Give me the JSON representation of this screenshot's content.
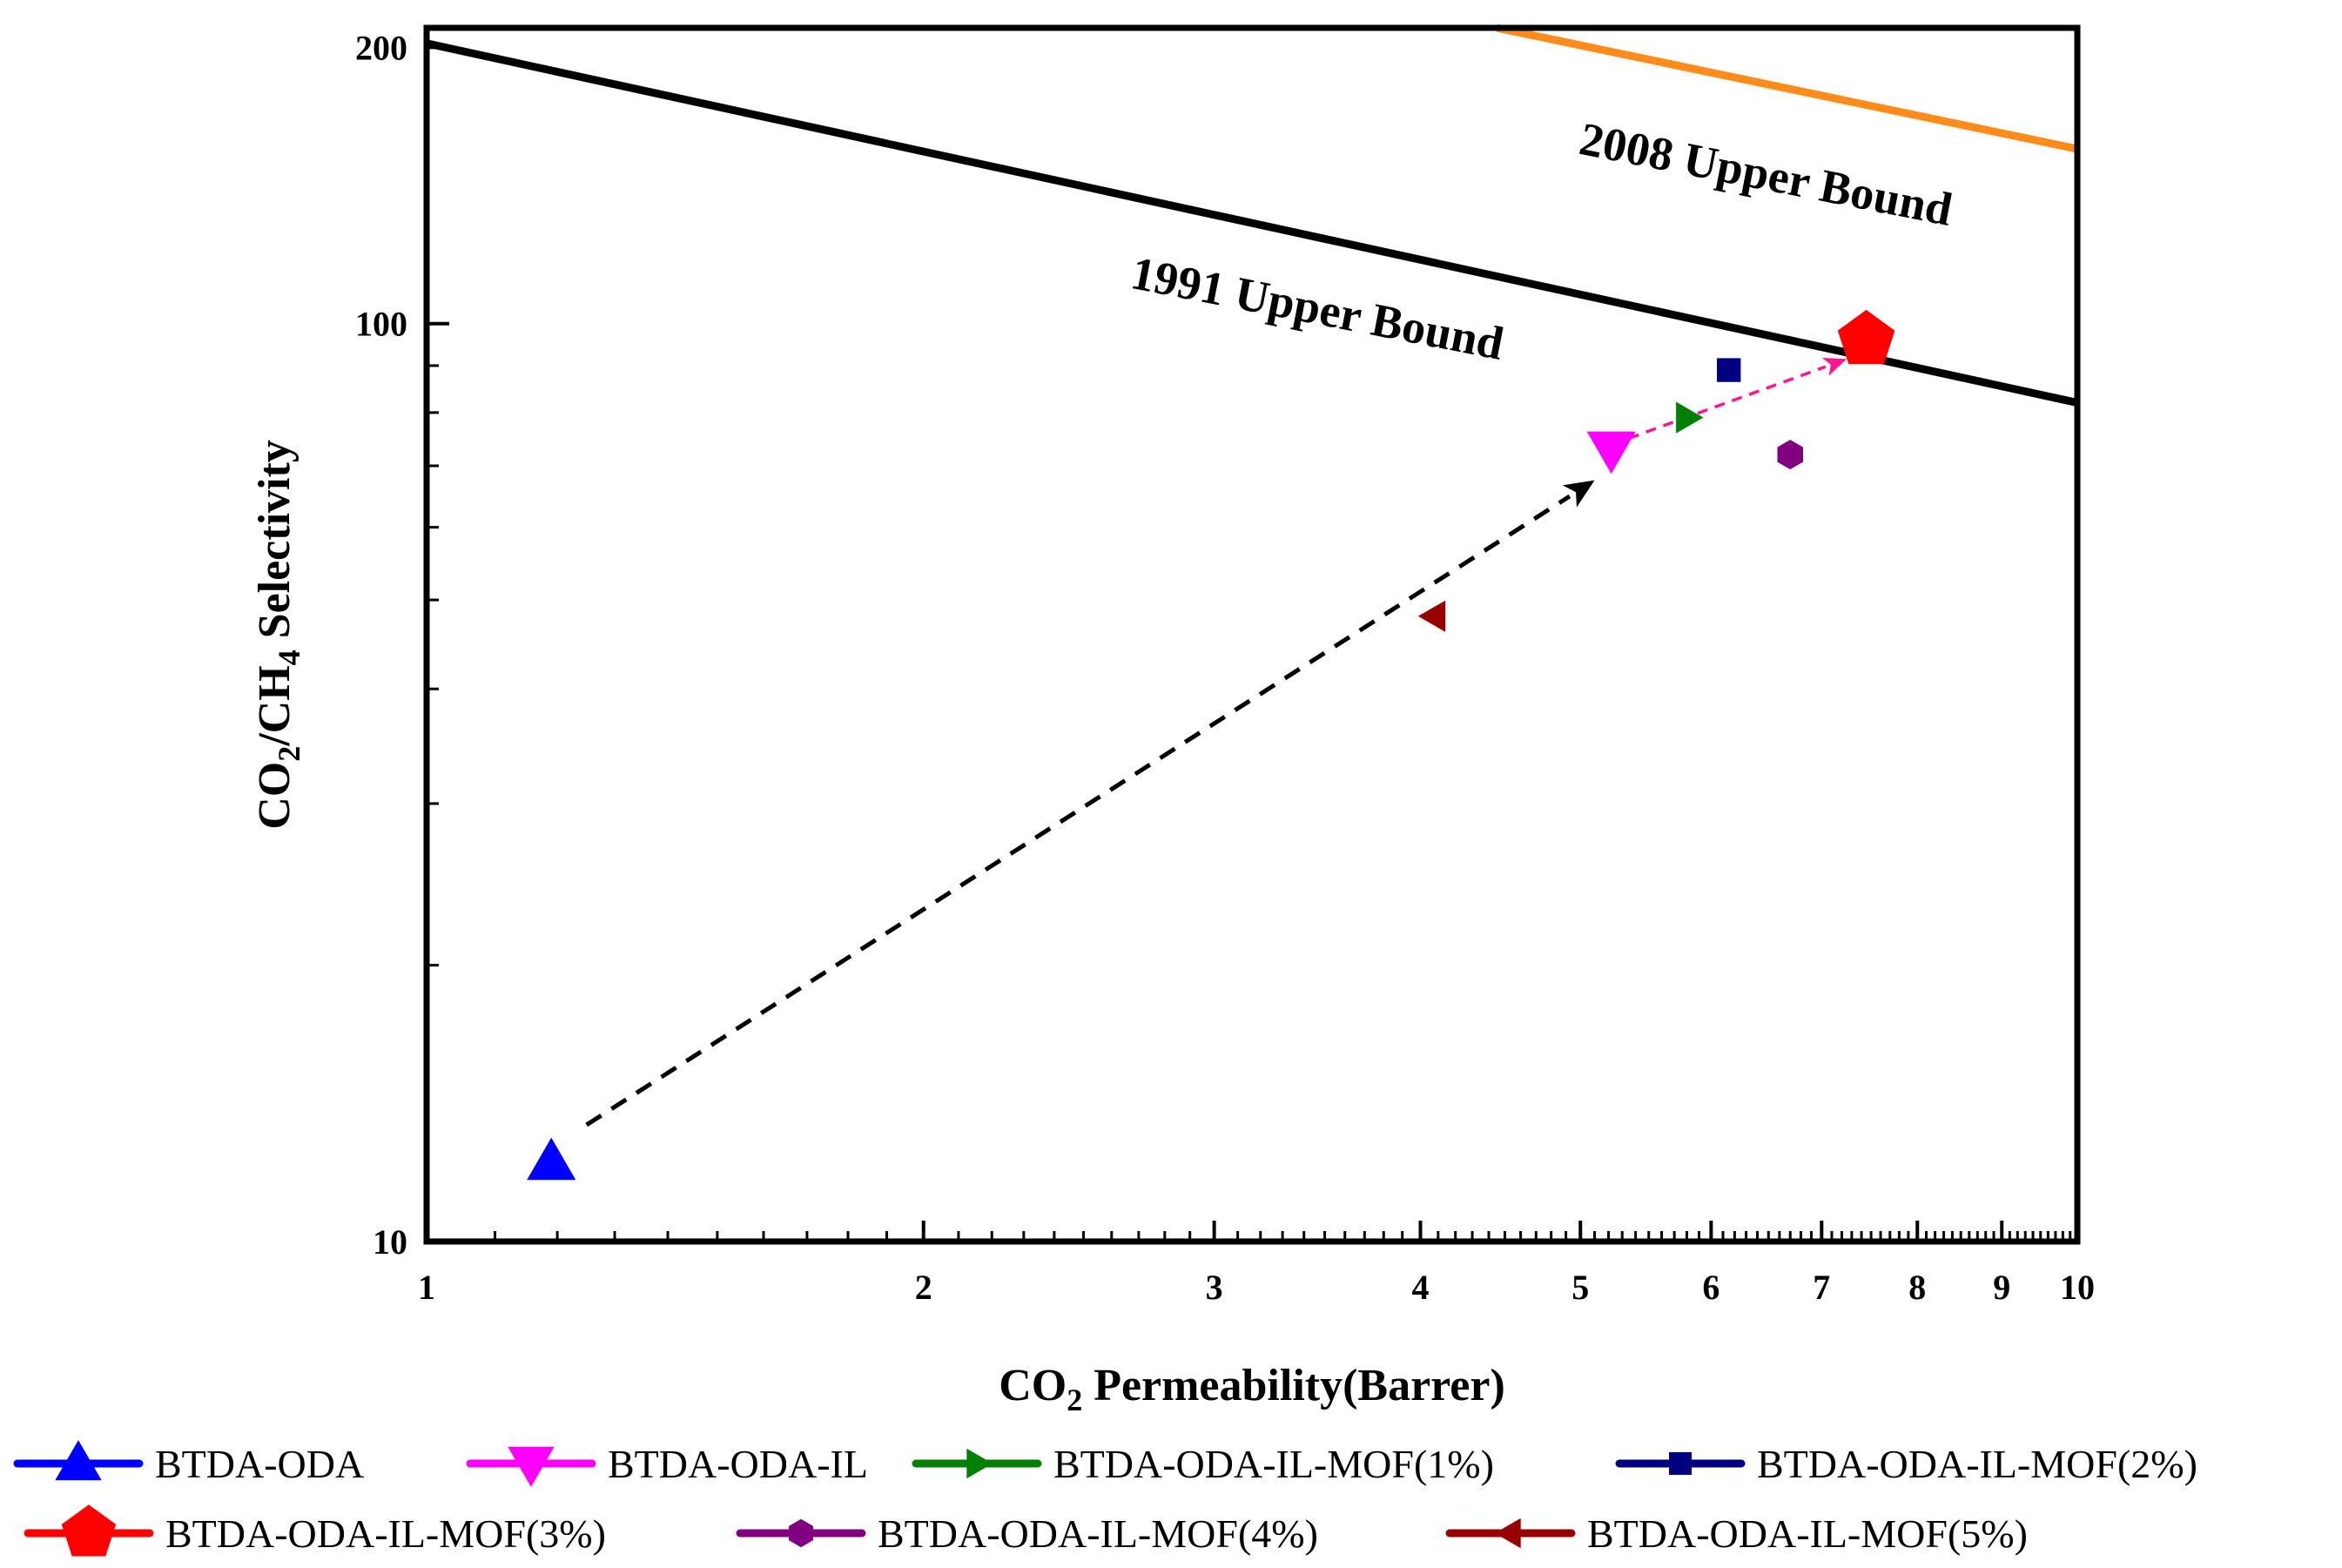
{
  "chart_data": {
    "type": "scatter",
    "xscale": "log",
    "yscale": "log",
    "xlim": [
      1,
      10
    ],
    "ylim": [
      10,
      210
    ],
    "xlabel": {
      "main": "CO",
      "sub": "2",
      "rest": " Permeability(Barrer)"
    },
    "ylabel": {
      "p1": "CO",
      "s1": "2",
      "p2": "/CH",
      "s2": "4",
      "p3": " Selectivity"
    },
    "xticks": [
      {
        "value": 1,
        "label": "1"
      },
      {
        "value": 2,
        "label": "2"
      },
      {
        "value": 3,
        "label": "3"
      },
      {
        "value": 4,
        "label": "4"
      },
      {
        "value": 5,
        "label": "5"
      },
      {
        "value": 6,
        "label": "6"
      },
      {
        "value": 7,
        "label": "7"
      },
      {
        "value": 8,
        "label": "8"
      },
      {
        "value": 9,
        "label": "9"
      },
      {
        "value": 10,
        "label": "10"
      }
    ],
    "yticks": [
      {
        "value": 10,
        "label": "10"
      },
      {
        "value": 100,
        "label": "100"
      },
      {
        "value": 200,
        "label": "200"
      }
    ],
    "yminor": [
      20,
      30,
      40,
      50,
      60,
      70,
      80,
      90
    ],
    "bounds": [
      {
        "name": "1991 Upper Bound",
        "label": "1991 Upper Bound",
        "color": "#000000",
        "p1": [
          1,
          202
        ],
        "p2": [
          10,
          82
        ],
        "label_at": [
          3.45,
          100
        ],
        "angle": 11
      },
      {
        "name": "2008 Upper Bound",
        "label": "2008 Upper Bound",
        "color": "#ff8c1a",
        "p1": [
          4.45,
          210
        ],
        "p2": [
          10,
          155
        ],
        "label_at": [
          6.45,
          140
        ],
        "angle": 11
      }
    ],
    "series": [
      {
        "name": "BTDA-ODA",
        "label": "BTDA-ODA",
        "x": 1.19,
        "y": 12.2,
        "marker": "triangle-up",
        "color": "#0000ff"
      },
      {
        "name": "BTDA-ODA-IL",
        "label": "BTDA-ODA-IL",
        "x": 5.22,
        "y": 73,
        "marker": "triangle-down",
        "color": "#ff00ff"
      },
      {
        "name": "BTDA-ODA-IL-MOF(1%)",
        "label": "BTDA-ODA-IL-MOF(1%)",
        "x": 5.8,
        "y": 79,
        "marker": "triangle-right",
        "color": "#008000"
      },
      {
        "name": "BTDA-ODA-IL-MOF(2%)",
        "label": "BTDA-ODA-IL-MOF(2%)",
        "x": 6.15,
        "y": 89,
        "marker": "square",
        "color": "#000080"
      },
      {
        "name": "BTDA-ODA-IL-MOF(3%)",
        "label": "BTDA-ODA-IL-MOF(3%)",
        "x": 7.45,
        "y": 96,
        "marker": "pentagon",
        "color": "#ff0000"
      },
      {
        "name": "BTDA-ODA-IL-MOF(4%)",
        "label": "BTDA-ODA-IL-MOF(4%)",
        "x": 6.7,
        "y": 72,
        "marker": "hexagon",
        "color": "#800080"
      },
      {
        "name": "BTDA-ODA-IL-MOF(5%)",
        "label": "BTDA-ODA-IL-MOF(5%)",
        "x": 4.08,
        "y": 48,
        "marker": "triangle-left",
        "color": "#990000"
      }
    ],
    "arrows": [
      {
        "from": [
          1.25,
          13.4
        ],
        "to": [
          5.1,
          67.5
        ],
        "color": "#000000"
      },
      {
        "from": [
          5.35,
          75
        ],
        "to": [
          7.25,
          91.5
        ],
        "color": "#ff1493"
      }
    ]
  }
}
